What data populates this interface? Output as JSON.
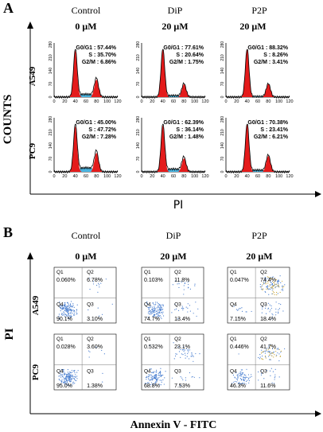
{
  "panel_a": {
    "letter": "A",
    "columns": [
      "Control",
      "DiP",
      "P2P"
    ],
    "doses": [
      "0 μM",
      "20 μM",
      "20 μM"
    ],
    "rows": [
      "A549",
      "PC9"
    ],
    "y_axis_label": "COUNTS",
    "x_axis_label": "PI",
    "x_ticks": [
      "0",
      "20",
      "40",
      "60",
      "80",
      "100",
      "120"
    ],
    "y_ticks": [
      "0",
      "70",
      "140",
      "210",
      "280"
    ],
    "cells": [
      [
        {
          "g0g1": "G0/G1 : 57.44%",
          "s": "S : 35.70%",
          "g2m": "G2/M : 6.86%"
        },
        {
          "g0g1": "G0/G1 : 77.61%",
          "s": "S : 20.64%",
          "g2m": "G2/M : 1.75%"
        },
        {
          "g0g1": "G0/G1 : 88.32%",
          "s": "S : 8.26%",
          "g2m": "G2/M : 3.41%"
        }
      ],
      [
        {
          "g0g1": "G0/G1 : 45.00%",
          "s": "S : 47.72%",
          "g2m": "G2/M : 7.28%"
        },
        {
          "g0g1": "G0/G1 : 62.39%",
          "s": "S : 36.14%",
          "g2m": "G2/M : 1.48%"
        },
        {
          "g0g1": "G0/G1 : 70.38%",
          "s": "S : 23.41%",
          "g2m": "G2/M : 6.21%"
        }
      ]
    ]
  },
  "panel_b": {
    "letter": "B",
    "columns": [
      "Control",
      "DiP",
      "P2P"
    ],
    "doses": [
      "0 μM",
      "20 μM",
      "20 μM"
    ],
    "rows": [
      "A549",
      "PC9"
    ],
    "y_axis_label": "PI",
    "x_axis_label": "Annexin V - FITC",
    "cells": [
      [
        {
          "q1": "0.060%",
          "q2": "6.78%",
          "q3": "3.10%",
          "q4": "90.1%"
        },
        {
          "q1": "0.103%",
          "q2": "11.8%",
          "q3": "13.4%",
          "q4": "74.7%"
        },
        {
          "q1": "0.047%",
          "q2": "74.4%",
          "q3": "18.4%",
          "q4": "7.15%"
        }
      ],
      [
        {
          "q1": "0.028%",
          "q2": "3.60%",
          "q3": "1.38%",
          "q4": "95.0%"
        },
        {
          "q1": "0.532%",
          "q2": "23.1%",
          "q3": "7.53%",
          "q4": "68.8%"
        },
        {
          "q1": "0.446%",
          "q2": "41.7%",
          "q3": "11.6%",
          "q4": "46.3%"
        }
      ]
    ],
    "quadrant_names": [
      "Q1",
      "Q2",
      "Q3",
      "Q4"
    ]
  },
  "colors": {
    "g0g1_fill": "#e41b1b",
    "s_fill": "#4ab4e0",
    "g2m_fill": "#e41b1b",
    "dots": "#4a7fd0",
    "outline": "#000000"
  }
}
